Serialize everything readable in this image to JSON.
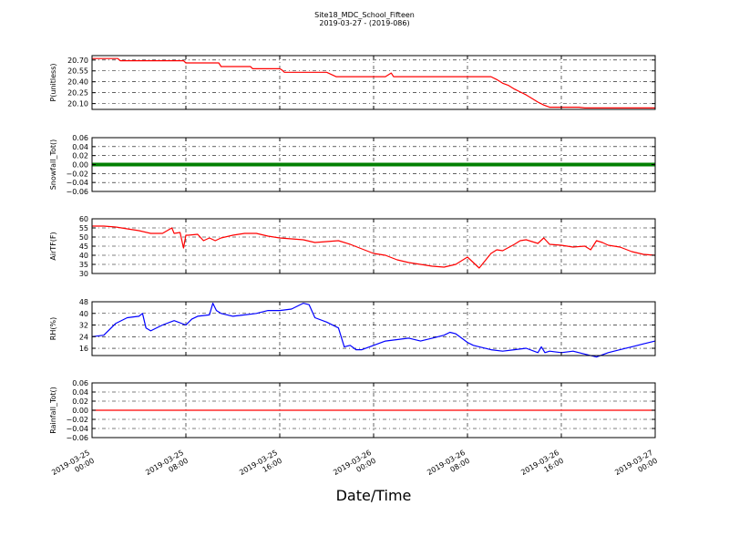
{
  "chart_data": {
    "type": "line",
    "title": "Site18_MDC_School_Fifteen",
    "subtitle": "2019-03-27 - (2019-086)",
    "xlabel": "Date/Time",
    "x_ticks": [
      [
        "2019-03-25",
        "00:00"
      ],
      [
        "2019-03-25",
        "08:00"
      ],
      [
        "2019-03-25",
        "16:00"
      ],
      [
        "2019-03-26",
        "00:00"
      ],
      [
        "2019-03-26",
        "08:00"
      ],
      [
        "2019-03-26",
        "16:00"
      ],
      [
        "2019-03-27",
        "00:00"
      ]
    ],
    "xlim_hours": [
      0,
      48
    ],
    "grid": true,
    "panels": [
      {
        "ylabel": "P(unitless)",
        "ylim": [
          20.02,
          20.76
        ],
        "yticks": [
          "20.10",
          "20.25",
          "20.40",
          "20.55",
          "20.70"
        ],
        "ytick_values": [
          20.1,
          20.25,
          20.4,
          20.55,
          20.7
        ],
        "color": "#ff0000",
        "marker": false,
        "x": [
          0,
          2.2,
          2.4,
          4,
          5,
          6,
          7.8,
          8,
          9,
          10.8,
          11,
          12,
          13.5,
          13.7,
          14,
          15,
          16,
          16.2,
          16.4,
          17,
          18,
          19,
          20,
          20.8,
          21,
          22,
          23,
          24,
          25,
          25.5,
          25.7,
          26,
          27,
          28,
          29,
          30,
          31,
          32,
          33,
          34,
          34.5,
          35,
          35.5,
          36,
          36.5,
          37,
          37.5,
          38,
          38.5,
          39,
          39.5,
          40,
          40.5,
          41,
          41.5,
          42,
          42.5,
          43,
          44,
          45,
          46,
          47,
          48
        ],
        "y": [
          20.72,
          20.72,
          20.69,
          20.69,
          20.69,
          20.69,
          20.69,
          20.66,
          20.66,
          20.66,
          20.61,
          20.61,
          20.61,
          20.58,
          20.58,
          20.58,
          20.58,
          20.56,
          20.53,
          20.53,
          20.53,
          20.53,
          20.53,
          20.47,
          20.47,
          20.47,
          20.47,
          20.47,
          20.47,
          20.52,
          20.47,
          20.47,
          20.47,
          20.47,
          20.47,
          20.47,
          20.47,
          20.47,
          20.47,
          20.47,
          20.43,
          20.38,
          20.35,
          20.3,
          20.26,
          20.22,
          20.17,
          20.12,
          20.08,
          20.05,
          20.05,
          20.05,
          20.05,
          20.05,
          20.05,
          20.04,
          20.04,
          20.04,
          20.04,
          20.04,
          20.04,
          20.04,
          20.04
        ]
      },
      {
        "ylabel": "Snowfall_Tot()",
        "ylim": [
          -0.06,
          0.06
        ],
        "yticks": [
          "0.06",
          "0.04",
          "0.02",
          "0.00",
          "−0.02",
          "−0.04",
          "−0.06"
        ],
        "ytick_values": [
          0.06,
          0.04,
          0.02,
          0.0,
          -0.02,
          -0.04,
          -0.06
        ],
        "color": "#008000",
        "marker": true,
        "x": [
          0,
          48
        ],
        "y": [
          0.0,
          0.0
        ]
      },
      {
        "ylabel": "AirTF(F)",
        "ylim": [
          30,
          60
        ],
        "yticks": [
          "60",
          "55",
          "50",
          "45",
          "40",
          "35",
          "30"
        ],
        "ytick_values": [
          60,
          55,
          50,
          45,
          40,
          35,
          30
        ],
        "color": "#ff0000",
        "marker": false,
        "x": [
          0,
          1,
          2,
          3,
          4,
          5,
          6,
          6.8,
          7,
          7.5,
          7.8,
          8,
          8.2,
          9,
          9.5,
          10,
          10.5,
          11,
          12,
          13,
          14,
          15,
          16,
          17,
          18,
          19,
          20,
          21,
          22,
          23,
          24,
          25,
          26,
          27,
          28,
          29,
          30,
          31,
          32,
          33,
          34,
          34.5,
          35,
          36,
          36.5,
          37,
          38,
          38.5,
          39,
          40,
          41,
          42,
          42.5,
          43,
          43.5,
          44,
          45,
          46,
          47,
          48
        ],
        "y": [
          56,
          56,
          55.5,
          54.5,
          53.5,
          52,
          52,
          55,
          52,
          52.5,
          44,
          51,
          51,
          51.5,
          48,
          49.5,
          48,
          49.5,
          51,
          52,
          52,
          50.5,
          49.5,
          49,
          48.5,
          47,
          47.5,
          48,
          46,
          43.5,
          41,
          40,
          37.5,
          36,
          35,
          34,
          33.5,
          35,
          39,
          33,
          41,
          43,
          42.5,
          46,
          48,
          48.5,
          46.5,
          49.5,
          46,
          45.5,
          44.5,
          45,
          43,
          48,
          47,
          45.5,
          44.5,
          42,
          40.5,
          40
        ]
      },
      {
        "ylabel": "RH(%)",
        "ylim": [
          11,
          48
        ],
        "yticks": [
          "48",
          "40",
          "32",
          "24",
          "16"
        ],
        "ytick_values": [
          48,
          40,
          32,
          24,
          16
        ],
        "color": "#0000ff",
        "marker": false,
        "x": [
          0,
          1,
          2,
          3,
          4,
          4.3,
          4.6,
          5,
          6,
          7,
          8,
          8.5,
          9,
          10,
          10.3,
          10.6,
          11,
          12,
          13,
          14,
          15,
          16,
          17,
          18,
          18.5,
          19,
          20,
          21,
          21.5,
          22,
          22.5,
          23,
          24,
          25,
          26,
          27,
          28,
          29,
          30,
          30.5,
          31,
          32,
          32.5,
          33,
          34,
          35,
          36,
          37,
          38,
          38.3,
          38.6,
          39,
          40,
          41,
          42,
          43,
          44,
          45,
          46,
          47,
          48
        ],
        "y": [
          24,
          25,
          33,
          37,
          38,
          40,
          30,
          28,
          32,
          35,
          32,
          36,
          38,
          39,
          47,
          42,
          40,
          38,
          39,
          40,
          42,
          42,
          43,
          47,
          46,
          37,
          34,
          30,
          17,
          18,
          15,
          15,
          18,
          21,
          22,
          23,
          21,
          23,
          25,
          27,
          26,
          20,
          18,
          17,
          15,
          14,
          15,
          16,
          13,
          17,
          13,
          14,
          13,
          14,
          12,
          10,
          13,
          15,
          17,
          19,
          21
        ]
      },
      {
        "ylabel": "Rainfall_Tot()",
        "ylim": [
          -0.06,
          0.06
        ],
        "yticks": [
          "0.06",
          "0.04",
          "0.02",
          "0.00",
          "−0.02",
          "−0.04",
          "−0.06"
        ],
        "ytick_values": [
          0.06,
          0.04,
          0.02,
          0.0,
          -0.02,
          -0.04,
          -0.06
        ],
        "color": "#ff0000",
        "marker": false,
        "x": [
          0,
          48
        ],
        "y": [
          0.0,
          0.0
        ]
      }
    ]
  }
}
